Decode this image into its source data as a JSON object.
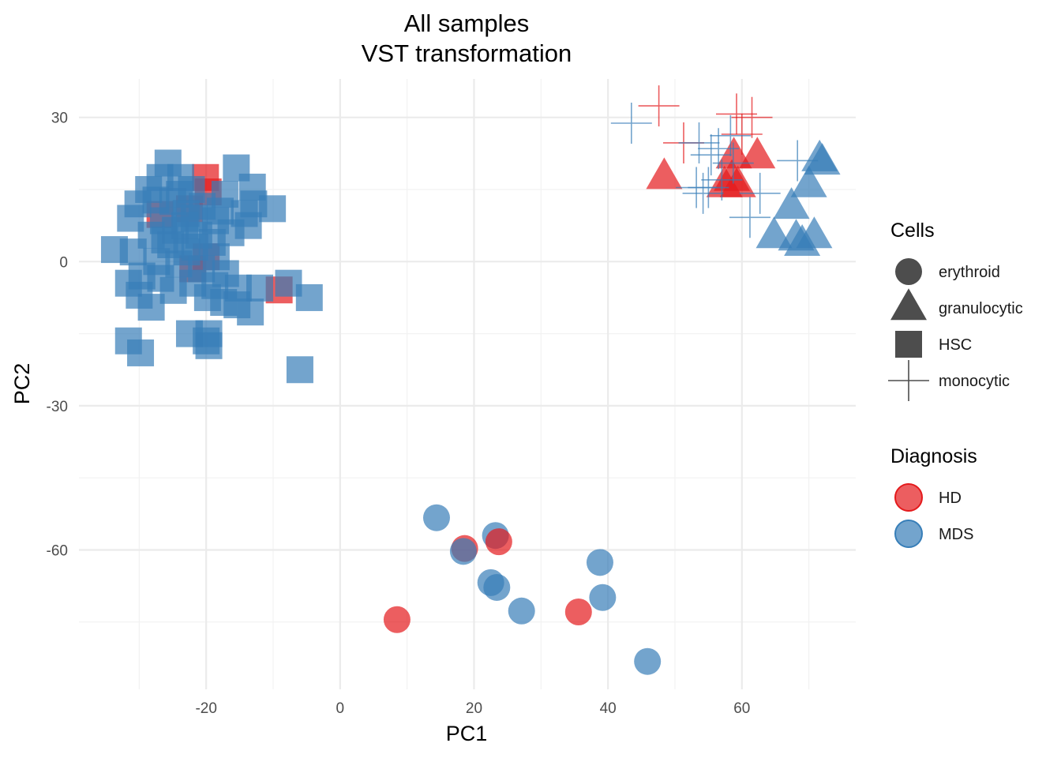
{
  "chart_data": {
    "type": "scatter",
    "title": "All samples",
    "subtitle": "VST transformation",
    "xlabel": "PC1",
    "ylabel": "PC2",
    "xlim": [
      -39,
      77
    ],
    "ylim": [
      -89,
      38
    ],
    "xticks": [
      -20,
      0,
      20,
      40,
      60
    ],
    "yticks": [
      -60,
      -30,
      0,
      30
    ],
    "grid": true,
    "legend_placement": "right",
    "colors": {
      "HD": "#e41a1c",
      "MDS": "#377eb8"
    },
    "marker_shapes": {
      "erythroid": "circle",
      "granulocytic": "triangle",
      "HSC": "square",
      "monocytic": "cross"
    },
    "legends": [
      {
        "title": "Cells",
        "aesthetic": "shape",
        "items": [
          "erythroid",
          "granulocytic",
          "HSC",
          "monocytic"
        ]
      },
      {
        "title": "Diagnosis",
        "aesthetic": "color",
        "items": [
          "HD",
          "MDS"
        ]
      }
    ],
    "points": [
      {
        "x": 14.4,
        "y": -53.3,
        "cells": "erythroid",
        "diagnosis": "MDS"
      },
      {
        "x": 23.2,
        "y": -57.0,
        "cells": "erythroid",
        "diagnosis": "MDS"
      },
      {
        "x": 18.6,
        "y": -59.7,
        "cells": "erythroid",
        "diagnosis": "HD"
      },
      {
        "x": 18.4,
        "y": -60.3,
        "cells": "erythroid",
        "diagnosis": "MDS"
      },
      {
        "x": 23.7,
        "y": -58.3,
        "cells": "erythroid",
        "diagnosis": "HD"
      },
      {
        "x": 22.5,
        "y": -66.8,
        "cells": "erythroid",
        "diagnosis": "MDS"
      },
      {
        "x": 23.4,
        "y": -67.8,
        "cells": "erythroid",
        "diagnosis": "MDS"
      },
      {
        "x": 27.1,
        "y": -72.7,
        "cells": "erythroid",
        "diagnosis": "MDS"
      },
      {
        "x": 8.5,
        "y": -74.5,
        "cells": "erythroid",
        "diagnosis": "HD"
      },
      {
        "x": 35.6,
        "y": -72.9,
        "cells": "erythroid",
        "diagnosis": "HD"
      },
      {
        "x": 38.8,
        "y": -62.6,
        "cells": "erythroid",
        "diagnosis": "MDS"
      },
      {
        "x": 39.2,
        "y": -69.9,
        "cells": "erythroid",
        "diagnosis": "MDS"
      },
      {
        "x": 45.9,
        "y": -83.2,
        "cells": "erythroid",
        "diagnosis": "MDS"
      },
      {
        "x": 48.4,
        "y": 17.6,
        "cells": "granulocytic",
        "diagnosis": "HD"
      },
      {
        "x": 58.8,
        "y": 21.9,
        "cells": "granulocytic",
        "diagnosis": "HD"
      },
      {
        "x": 62.3,
        "y": 21.9,
        "cells": "granulocytic",
        "diagnosis": "HD"
      },
      {
        "x": 58.5,
        "y": 17.2,
        "cells": "granulocytic",
        "diagnosis": "HD"
      },
      {
        "x": 57.4,
        "y": 15.9,
        "cells": "granulocytic",
        "diagnosis": "HD"
      },
      {
        "x": 59.4,
        "y": 15.9,
        "cells": "granulocytic",
        "diagnosis": "HD"
      },
      {
        "x": 71.6,
        "y": 21.3,
        "cells": "granulocytic",
        "diagnosis": "MDS"
      },
      {
        "x": 72.0,
        "y": 20.6,
        "cells": "granulocytic",
        "diagnosis": "MDS"
      },
      {
        "x": 70.0,
        "y": 15.9,
        "cells": "granulocytic",
        "diagnosis": "MDS"
      },
      {
        "x": 67.4,
        "y": 11.4,
        "cells": "granulocytic",
        "diagnosis": "MDS"
      },
      {
        "x": 64.8,
        "y": 5.3,
        "cells": "granulocytic",
        "diagnosis": "MDS"
      },
      {
        "x": 68.1,
        "y": 4.8,
        "cells": "granulocytic",
        "diagnosis": "MDS"
      },
      {
        "x": 70.8,
        "y": 5.3,
        "cells": "granulocytic",
        "diagnosis": "MDS"
      },
      {
        "x": 69.0,
        "y": 3.7,
        "cells": "granulocytic",
        "diagnosis": "MDS"
      },
      {
        "x": 47.6,
        "y": 32.4,
        "cells": "monocytic",
        "diagnosis": "HD"
      },
      {
        "x": 59.2,
        "y": 30.7,
        "cells": "monocytic",
        "diagnosis": "HD"
      },
      {
        "x": 61.5,
        "y": 30.0,
        "cells": "monocytic",
        "diagnosis": "HD"
      },
      {
        "x": 51.3,
        "y": 24.7,
        "cells": "monocytic",
        "diagnosis": "HD"
      },
      {
        "x": 60.0,
        "y": 26.5,
        "cells": "monocytic",
        "diagnosis": "HD"
      },
      {
        "x": 43.5,
        "y": 28.8,
        "cells": "monocytic",
        "diagnosis": "MDS"
      },
      {
        "x": 53.6,
        "y": 24.7,
        "cells": "monocytic",
        "diagnosis": "MDS"
      },
      {
        "x": 58.3,
        "y": 26.2,
        "cells": "monocytic",
        "diagnosis": "MDS"
      },
      {
        "x": 56.5,
        "y": 23.5,
        "cells": "monocytic",
        "diagnosis": "MDS"
      },
      {
        "x": 55.4,
        "y": 22.2,
        "cells": "monocytic",
        "diagnosis": "MDS"
      },
      {
        "x": 58.7,
        "y": 20.5,
        "cells": "monocytic",
        "diagnosis": "MDS"
      },
      {
        "x": 68.3,
        "y": 21.0,
        "cells": "monocytic",
        "diagnosis": "MDS"
      },
      {
        "x": 53.2,
        "y": 15.4,
        "cells": "monocytic",
        "diagnosis": "MDS"
      },
      {
        "x": 55.0,
        "y": 15.4,
        "cells": "monocytic",
        "diagnosis": "MDS"
      },
      {
        "x": 54.2,
        "y": 14.2,
        "cells": "monocytic",
        "diagnosis": "MDS"
      },
      {
        "x": 62.7,
        "y": 14.2,
        "cells": "monocytic",
        "diagnosis": "MDS"
      },
      {
        "x": 61.2,
        "y": 9.2,
        "cells": "monocytic",
        "diagnosis": "MDS"
      },
      {
        "x": 57.0,
        "y": 17.0,
        "cells": "monocytic",
        "diagnosis": "MDS"
      },
      {
        "x": -20.1,
        "y": 17.5,
        "cells": "HSC",
        "diagnosis": "HD"
      },
      {
        "x": -19.7,
        "y": 14.5,
        "cells": "HSC",
        "diagnosis": "HD"
      },
      {
        "x": -22.5,
        "y": 11.0,
        "cells": "HSC",
        "diagnosis": "HD"
      },
      {
        "x": -26.9,
        "y": 9.8,
        "cells": "HSC",
        "diagnosis": "HD"
      },
      {
        "x": -20.0,
        "y": 1.0,
        "cells": "HSC",
        "diagnosis": "HD"
      },
      {
        "x": -22.0,
        "y": -1.5,
        "cells": "HSC",
        "diagnosis": "HD"
      },
      {
        "x": -9.1,
        "y": -5.9,
        "cells": "HSC",
        "diagnosis": "HD"
      },
      {
        "x": -25.7,
        "y": 20.5,
        "cells": "HSC",
        "diagnosis": "MDS"
      },
      {
        "x": -15.5,
        "y": 19.5,
        "cells": "HSC",
        "diagnosis": "MDS"
      },
      {
        "x": -26.9,
        "y": 17.5,
        "cells": "HSC",
        "diagnosis": "MDS"
      },
      {
        "x": -23.8,
        "y": 17.5,
        "cells": "HSC",
        "diagnosis": "MDS"
      },
      {
        "x": -13.1,
        "y": 15.5,
        "cells": "HSC",
        "diagnosis": "MDS"
      },
      {
        "x": -28.6,
        "y": 15.0,
        "cells": "HSC",
        "diagnosis": "MDS"
      },
      {
        "x": -22.2,
        "y": 15.0,
        "cells": "HSC",
        "diagnosis": "MDS"
      },
      {
        "x": -17.2,
        "y": 14.0,
        "cells": "HSC",
        "diagnosis": "MDS"
      },
      {
        "x": -12.9,
        "y": 12.0,
        "cells": "HSC",
        "diagnosis": "MDS"
      },
      {
        "x": -25.0,
        "y": 12.5,
        "cells": "HSC",
        "diagnosis": "MDS"
      },
      {
        "x": -30.2,
        "y": 12.0,
        "cells": "HSC",
        "diagnosis": "MDS"
      },
      {
        "x": -20.6,
        "y": 11.5,
        "cells": "HSC",
        "diagnosis": "MDS"
      },
      {
        "x": -14.3,
        "y": 10.0,
        "cells": "HSC",
        "diagnosis": "MDS"
      },
      {
        "x": -10.1,
        "y": 11.0,
        "cells": "HSC",
        "diagnosis": "MDS"
      },
      {
        "x": -18.6,
        "y": 8.5,
        "cells": "HSC",
        "diagnosis": "MDS"
      },
      {
        "x": -26.4,
        "y": 8.5,
        "cells": "HSC",
        "diagnosis": "MDS"
      },
      {
        "x": -31.3,
        "y": 9.0,
        "cells": "HSC",
        "diagnosis": "MDS"
      },
      {
        "x": -23.2,
        "y": 7.5,
        "cells": "HSC",
        "diagnosis": "MDS"
      },
      {
        "x": -13.7,
        "y": 7.5,
        "cells": "HSC",
        "diagnosis": "MDS"
      },
      {
        "x": -16.3,
        "y": 6.0,
        "cells": "HSC",
        "diagnosis": "MDS"
      },
      {
        "x": -28.2,
        "y": 5.5,
        "cells": "HSC",
        "diagnosis": "MDS"
      },
      {
        "x": -21.1,
        "y": 5.5,
        "cells": "HSC",
        "diagnosis": "MDS"
      },
      {
        "x": -19.1,
        "y": 4.0,
        "cells": "HSC",
        "diagnosis": "MDS"
      },
      {
        "x": -25.3,
        "y": 3.5,
        "cells": "HSC",
        "diagnosis": "MDS"
      },
      {
        "x": -33.7,
        "y": 2.5,
        "cells": "HSC",
        "diagnosis": "MDS"
      },
      {
        "x": -30.9,
        "y": 2.0,
        "cells": "HSC",
        "diagnosis": "MDS"
      },
      {
        "x": -22.9,
        "y": 2.0,
        "cells": "HSC",
        "diagnosis": "MDS"
      },
      {
        "x": -18.5,
        "y": 1.0,
        "cells": "HSC",
        "diagnosis": "MDS"
      },
      {
        "x": -27.4,
        "y": 0.0,
        "cells": "HSC",
        "diagnosis": "MDS"
      },
      {
        "x": -24.1,
        "y": -0.5,
        "cells": "HSC",
        "diagnosis": "MDS"
      },
      {
        "x": -20.7,
        "y": -1.5,
        "cells": "HSC",
        "diagnosis": "MDS"
      },
      {
        "x": -17.1,
        "y": -2.5,
        "cells": "HSC",
        "diagnosis": "MDS"
      },
      {
        "x": -29.6,
        "y": -3.0,
        "cells": "HSC",
        "diagnosis": "MDS"
      },
      {
        "x": -26.8,
        "y": -3.5,
        "cells": "HSC",
        "diagnosis": "MDS"
      },
      {
        "x": -31.6,
        "y": -4.5,
        "cells": "HSC",
        "diagnosis": "MDS"
      },
      {
        "x": -22.0,
        "y": -4.5,
        "cells": "HSC",
        "diagnosis": "MDS"
      },
      {
        "x": -18.7,
        "y": -5.0,
        "cells": "HSC",
        "diagnosis": "MDS"
      },
      {
        "x": -15.2,
        "y": -5.5,
        "cells": "HSC",
        "diagnosis": "MDS"
      },
      {
        "x": -12.0,
        "y": -5.5,
        "cells": "HSC",
        "diagnosis": "MDS"
      },
      {
        "x": -7.7,
        "y": -4.5,
        "cells": "HSC",
        "diagnosis": "MDS"
      },
      {
        "x": -24.9,
        "y": -6.0,
        "cells": "HSC",
        "diagnosis": "MDS"
      },
      {
        "x": -30.0,
        "y": -7.0,
        "cells": "HSC",
        "diagnosis": "MDS"
      },
      {
        "x": -19.8,
        "y": -7.5,
        "cells": "HSC",
        "diagnosis": "MDS"
      },
      {
        "x": -17.4,
        "y": -8.5,
        "cells": "HSC",
        "diagnosis": "MDS"
      },
      {
        "x": -15.4,
        "y": -9.0,
        "cells": "HSC",
        "diagnosis": "MDS"
      },
      {
        "x": -4.6,
        "y": -7.5,
        "cells": "HSC",
        "diagnosis": "MDS"
      },
      {
        "x": -28.2,
        "y": -9.5,
        "cells": "HSC",
        "diagnosis": "MDS"
      },
      {
        "x": -13.4,
        "y": -10.5,
        "cells": "HSC",
        "diagnosis": "MDS"
      },
      {
        "x": -22.5,
        "y": -15.0,
        "cells": "HSC",
        "diagnosis": "MDS"
      },
      {
        "x": -19.6,
        "y": -15.0,
        "cells": "HSC",
        "diagnosis": "MDS"
      },
      {
        "x": -31.6,
        "y": -16.5,
        "cells": "HSC",
        "diagnosis": "MDS"
      },
      {
        "x": -20.0,
        "y": -16.5,
        "cells": "HSC",
        "diagnosis": "MDS"
      },
      {
        "x": -29.8,
        "y": -19.0,
        "cells": "HSC",
        "diagnosis": "MDS"
      },
      {
        "x": -19.6,
        "y": -17.5,
        "cells": "HSC",
        "diagnosis": "MDS"
      },
      {
        "x": -6.0,
        "y": -22.5,
        "cells": "HSC",
        "diagnosis": "MDS"
      },
      {
        "x": -24.0,
        "y": 14.0,
        "cells": "HSC",
        "diagnosis": "MDS"
      },
      {
        "x": -27.5,
        "y": 12.8,
        "cells": "HSC",
        "diagnosis": "MDS"
      },
      {
        "x": -21.8,
        "y": 9.0,
        "cells": "HSC",
        "diagnosis": "MDS"
      },
      {
        "x": -24.6,
        "y": 6.5,
        "cells": "HSC",
        "diagnosis": "MDS"
      },
      {
        "x": -26.2,
        "y": 4.5,
        "cells": "HSC",
        "diagnosis": "MDS"
      },
      {
        "x": -21.7,
        "y": 3.0,
        "cells": "HSC",
        "diagnosis": "MDS"
      },
      {
        "x": -17.9,
        "y": 10.5,
        "cells": "HSC",
        "diagnosis": "MDS"
      },
      {
        "x": -23.0,
        "y": 10.0,
        "cells": "HSC",
        "diagnosis": "MDS"
      }
    ]
  }
}
